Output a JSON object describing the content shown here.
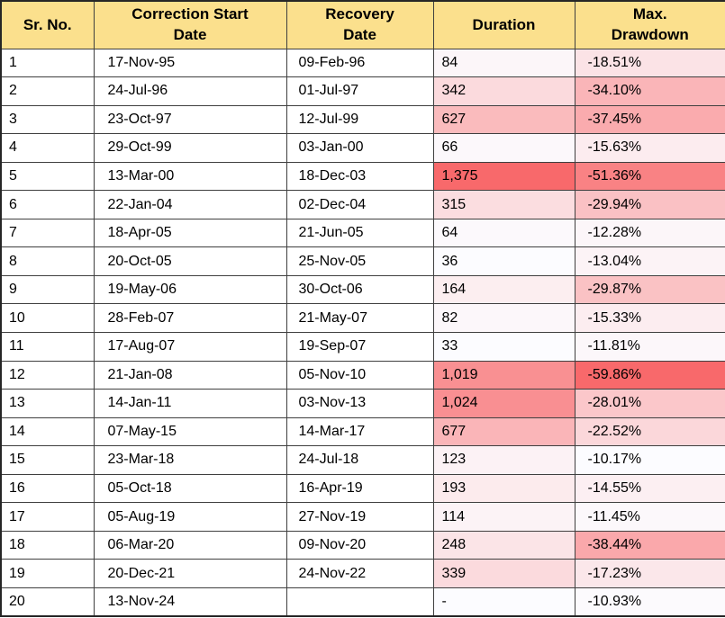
{
  "colors": {
    "header_bg": "#FBE08D",
    "border_inner": "#3F3F3F",
    "border_outer": "#262626",
    "text": "#000000",
    "scale_min_white": "#FCFCFF",
    "scale_max_red": "#F8696B"
  },
  "table": {
    "columns": [
      "Sr. No.",
      "Correction Start\nDate",
      "Recovery\nDate",
      "Duration",
      "Max.\nDrawdown"
    ],
    "rows": [
      {
        "sr": "1",
        "start": "17-Nov-95",
        "recovery": "09-Feb-96",
        "duration": "84",
        "drawdown": "-18.51%",
        "duration_color": "#FCF6F9",
        "drawdown_color": "#FBE3E6"
      },
      {
        "sr": "2",
        "start": "24-Jul-96",
        "recovery": "01-Jul-97",
        "duration": "342",
        "drawdown": "-34.10%",
        "duration_color": "#FBDADD",
        "drawdown_color": "#FAB5B8"
      },
      {
        "sr": "3",
        "start": "23-Oct-97",
        "recovery": "12-Jul-99",
        "duration": "627",
        "drawdown": "-37.45%",
        "duration_color": "#FABBBD",
        "drawdown_color": "#FAABAE"
      },
      {
        "sr": "4",
        "start": "29-Oct-99",
        "recovery": "03-Jan-00",
        "duration": "66",
        "drawdown": "-15.63%",
        "duration_color": "#FCF8FB",
        "drawdown_color": "#FCECEF"
      },
      {
        "sr": "5",
        "start": "13-Mar-00",
        "recovery": "18-Dec-03",
        "duration": "1,375",
        "drawdown": "-51.36%",
        "duration_color": "#F8696B",
        "drawdown_color": "#F98284"
      },
      {
        "sr": "6",
        "start": "22-Jan-04",
        "recovery": "02-Dec-04",
        "duration": "315",
        "drawdown": "-29.94%",
        "duration_color": "#FBDDE0",
        "drawdown_color": "#FAC1C4"
      },
      {
        "sr": "7",
        "start": "18-Apr-05",
        "recovery": "21-Jun-05",
        "duration": "64",
        "drawdown": "-12.28%",
        "duration_color": "#FCF9FC",
        "drawdown_color": "#FCF6F9"
      },
      {
        "sr": "8",
        "start": "20-Oct-05",
        "recovery": "25-Nov-05",
        "duration": "36",
        "drawdown": "-13.04%",
        "duration_color": "#FCFCFF",
        "drawdown_color": "#FCF3F6"
      },
      {
        "sr": "9",
        "start": "19-May-06",
        "recovery": "30-Oct-06",
        "duration": "164",
        "drawdown": "-29.87%",
        "duration_color": "#FCEEF0",
        "drawdown_color": "#FAC2C4"
      },
      {
        "sr": "10",
        "start": "28-Feb-07",
        "recovery": "21-May-07",
        "duration": "82",
        "drawdown": "-15.33%",
        "duration_color": "#FCF7FA",
        "drawdown_color": "#FCEDF0"
      },
      {
        "sr": "11",
        "start": "17-Aug-07",
        "recovery": "19-Sep-07",
        "duration": "33",
        "drawdown": "-11.81%",
        "duration_color": "#FCFCFF",
        "drawdown_color": "#FCF7FA"
      },
      {
        "sr": "12",
        "start": "21-Jan-08",
        "recovery": "05-Nov-10",
        "duration": "1,019",
        "drawdown": "-59.86%",
        "duration_color": "#F99092",
        "drawdown_color": "#F8696B"
      },
      {
        "sr": "13",
        "start": "14-Jan-11",
        "recovery": "03-Nov-13",
        "duration": "1,024",
        "drawdown": "-28.01%",
        "duration_color": "#F98F92",
        "drawdown_color": "#FBC7CA"
      },
      {
        "sr": "14",
        "start": "07-May-15",
        "recovery": "14-Mar-17",
        "duration": "677",
        "drawdown": "-22.52%",
        "duration_color": "#FAB5B8",
        "drawdown_color": "#FBD7DA"
      },
      {
        "sr": "15",
        "start": "23-Mar-18",
        "recovery": "24-Jul-18",
        "duration": "123",
        "drawdown": "-10.17%",
        "duration_color": "#FCF2F5",
        "drawdown_color": "#FCFCFF"
      },
      {
        "sr": "16",
        "start": "05-Oct-18",
        "recovery": "16-Apr-19",
        "duration": "193",
        "drawdown": "-14.55%",
        "duration_color": "#FCEBED",
        "drawdown_color": "#FCEFF2"
      },
      {
        "sr": "17",
        "start": "05-Aug-19",
        "recovery": "27-Nov-19",
        "duration": "114",
        "drawdown": "-11.45%",
        "duration_color": "#FCF3F6",
        "drawdown_color": "#FCF8FB"
      },
      {
        "sr": "18",
        "start": "06-Mar-20",
        "recovery": "09-Nov-20",
        "duration": "248",
        "drawdown": "-38.44%",
        "duration_color": "#FBE4E7",
        "drawdown_color": "#FAA8AB"
      },
      {
        "sr": "19",
        "start": "20-Dec-21",
        "recovery": "24-Nov-22",
        "duration": "339",
        "drawdown": "-17.23%",
        "duration_color": "#FBDADD",
        "drawdown_color": "#FBE7EA"
      },
      {
        "sr": "20",
        "start": "13-Nov-24",
        "recovery": "",
        "duration": "-",
        "drawdown": "-10.93%",
        "duration_color": "#FCFCFF",
        "drawdown_color": "#FCFAFD"
      }
    ]
  },
  "chart_data": {
    "type": "table",
    "title": "Market corrections: start date, recovery date, duration and max drawdown",
    "columns": [
      "Sr. No.",
      "Correction Start Date",
      "Recovery Date",
      "Duration",
      "Max. Drawdown"
    ],
    "rows": [
      [
        1,
        "17-Nov-95",
        "09-Feb-96",
        84,
        -18.51
      ],
      [
        2,
        "24-Jul-96",
        "01-Jul-97",
        342,
        -34.1
      ],
      [
        3,
        "23-Oct-97",
        "12-Jul-99",
        627,
        -37.45
      ],
      [
        4,
        "29-Oct-99",
        "03-Jan-00",
        66,
        -15.63
      ],
      [
        5,
        "13-Mar-00",
        "18-Dec-03",
        1375,
        -51.36
      ],
      [
        6,
        "22-Jan-04",
        "02-Dec-04",
        315,
        -29.94
      ],
      [
        7,
        "18-Apr-05",
        "21-Jun-05",
        64,
        -12.28
      ],
      [
        8,
        "20-Oct-05",
        "25-Nov-05",
        36,
        -13.04
      ],
      [
        9,
        "19-May-06",
        "30-Oct-06",
        164,
        -29.87
      ],
      [
        10,
        "28-Feb-07",
        "21-May-07",
        82,
        -15.33
      ],
      [
        11,
        "17-Aug-07",
        "19-Sep-07",
        33,
        -11.81
      ],
      [
        12,
        "21-Jan-08",
        "05-Nov-10",
        1019,
        -59.86
      ],
      [
        13,
        "14-Jan-11",
        "03-Nov-13",
        1024,
        -28.01
      ],
      [
        14,
        "07-May-15",
        "14-Mar-17",
        677,
        -22.52
      ],
      [
        15,
        "23-Mar-18",
        "24-Jul-18",
        123,
        -10.17
      ],
      [
        16,
        "05-Oct-18",
        "16-Apr-19",
        193,
        -14.55
      ],
      [
        17,
        "05-Aug-19",
        "27-Nov-19",
        114,
        -11.45
      ],
      [
        18,
        "06-Mar-20",
        "09-Nov-20",
        248,
        -38.44
      ],
      [
        19,
        "20-Dec-21",
        "24-Nov-22",
        339,
        -17.23
      ],
      [
        20,
        "13-Nov-24",
        null,
        null,
        -10.93
      ]
    ],
    "conditional_formatting": {
      "columns": [
        "Duration",
        "Max. Drawdown"
      ],
      "scale": "two-color white-to-red",
      "white": "#FCFCFF",
      "red": "#F8696B",
      "note": "larger duration / deeper drawdown = darker red"
    }
  }
}
